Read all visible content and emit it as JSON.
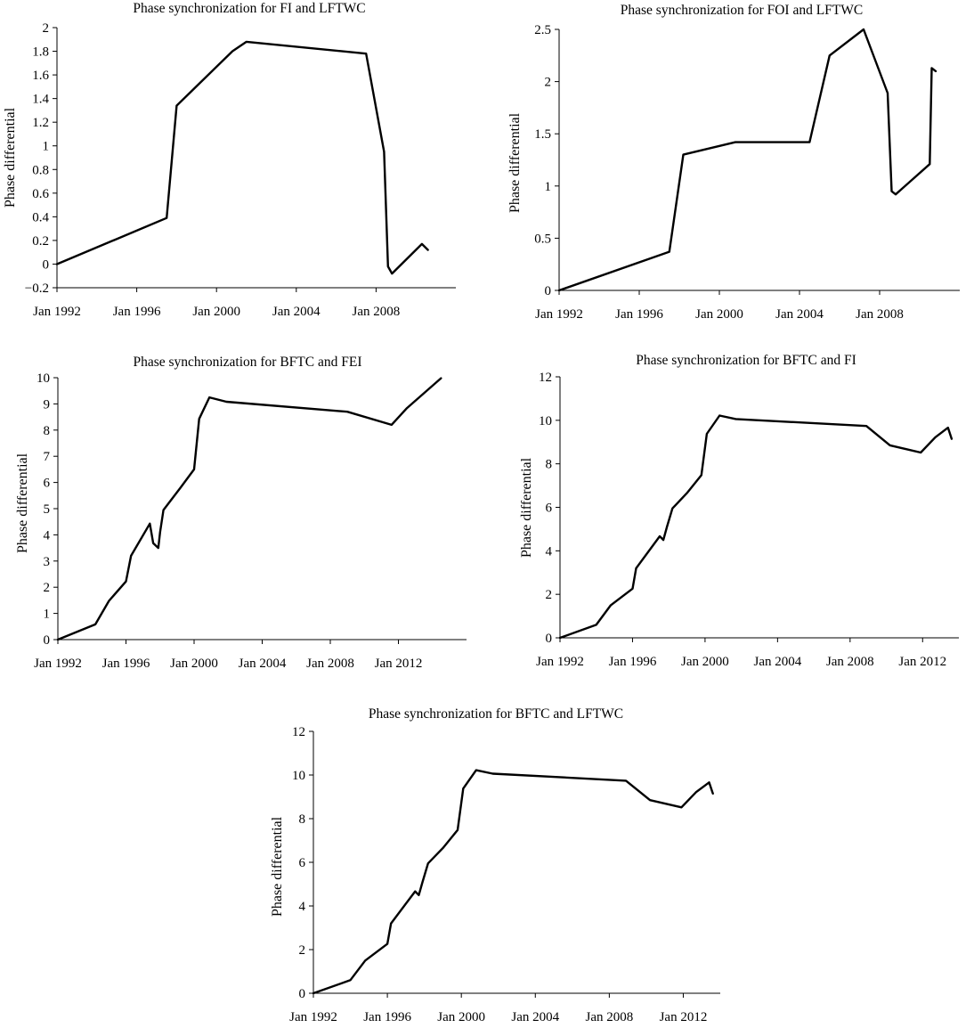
{
  "chart_data": [
    {
      "type": "line",
      "title": "Phase synchronization for FI and LFTWC",
      "ylabel": "Phase differential",
      "xlabel": "",
      "xlim": [
        1992,
        2012
      ],
      "ylim": [
        -0.2,
        2
      ],
      "yticks": [
        -0.2,
        0,
        0.2,
        0.4,
        0.6,
        0.8,
        1,
        1.2,
        1.4,
        1.6,
        1.8,
        2
      ],
      "ytick_labels": [
        "−0.2",
        "0",
        "0.2",
        "0.4",
        "0.6",
        "0.8",
        "1",
        "1.2",
        "1.4",
        "1.6",
        "1.8",
        "2"
      ],
      "xticks": [
        1992,
        1996,
        2000,
        2004,
        2008
      ],
      "xtick_labels": [
        "Jan 1992",
        "Jan 1996",
        "Jan 2000",
        "Jan 2004",
        "Jan 2008"
      ],
      "x": [
        1992.0,
        1997.5,
        1998.0,
        2000.8,
        2001.5,
        2007.5,
        2008.4,
        2008.6,
        2008.8,
        2010.3,
        2010.6
      ],
      "y": [
        0.0,
        0.39,
        1.34,
        1.8,
        1.88,
        1.78,
        0.95,
        -0.02,
        -0.08,
        0.17,
        0.12
      ]
    },
    {
      "type": "line",
      "title": "Phase synchronization for FOI and LFTWC",
      "ylabel": "Phase differential",
      "xlabel": "",
      "xlim": [
        1992,
        2012
      ],
      "ylim": [
        0,
        2.5
      ],
      "yticks": [
        0,
        0.5,
        1,
        1.5,
        2,
        2.5
      ],
      "ytick_labels": [
        "0",
        "0.5",
        "1",
        "1.5",
        "2",
        "2.5"
      ],
      "xticks": [
        1992,
        1996,
        2000,
        2004,
        2008
      ],
      "xtick_labels": [
        "Jan 1992",
        "Jan 1996",
        "Jan 2000",
        "Jan 2004",
        "Jan 2008"
      ],
      "x": [
        1992.0,
        1997.5,
        1998.2,
        2000.8,
        2004.5,
        2005.5,
        2007.2,
        2008.4,
        2008.6,
        2008.8,
        2010.5,
        2010.6,
        2010.8
      ],
      "y": [
        0.0,
        0.37,
        1.3,
        1.42,
        1.42,
        2.25,
        2.5,
        1.89,
        0.95,
        0.92,
        1.21,
        2.13,
        2.1
      ]
    },
    {
      "type": "line",
      "title": "Phase synchronization for BFTC and FEI",
      "ylabel": "Phase differential",
      "xlabel": "",
      "xlim": [
        1992,
        2016
      ],
      "ylim": [
        0,
        10
      ],
      "yticks": [
        0,
        1,
        2,
        3,
        4,
        5,
        6,
        7,
        8,
        9,
        10
      ],
      "ytick_labels": [
        "0",
        "1",
        "2",
        "3",
        "4",
        "5",
        "6",
        "7",
        "8",
        "9",
        "10"
      ],
      "xticks": [
        1992,
        1996,
        2000,
        2004,
        2008,
        2012
      ],
      "xtick_labels": [
        "Jan 1992",
        "Jan 1996",
        "Jan 2000",
        "Jan 2004",
        "Jan 2008",
        "Jan 2012"
      ],
      "x": [
        1992.0,
        1994.2,
        1995.0,
        1996.0,
        1996.3,
        1997.4,
        1997.6,
        1997.9,
        1998.0,
        1998.2,
        1999.2,
        2000.0,
        2000.3,
        2000.9,
        2001.9,
        2009.0,
        2011.6,
        2012.5,
        2014.5
      ],
      "y": [
        0.0,
        0.58,
        1.48,
        2.22,
        3.2,
        4.43,
        3.68,
        3.5,
        4.1,
        4.95,
        5.8,
        6.5,
        8.43,
        9.25,
        9.08,
        8.7,
        8.2,
        8.84,
        9.98
      ]
    },
    {
      "type": "line",
      "title": "Phase synchronization for BFTC and FI",
      "ylabel": "Phase differential",
      "xlabel": "",
      "xlim": [
        1992,
        2014
      ],
      "ylim": [
        0,
        12
      ],
      "yticks": [
        0,
        2,
        4,
        6,
        8,
        10,
        12
      ],
      "ytick_labels": [
        "0",
        "2",
        "4",
        "6",
        "8",
        "10",
        "12"
      ],
      "xticks": [
        1992,
        1996,
        2000,
        2004,
        2008,
        2012
      ],
      "xtick_labels": [
        "Jan 1992",
        "Jan 1996",
        "Jan 2000",
        "Jan 2004",
        "Jan 2008",
        "Jan 2012"
      ],
      "x": [
        1992.0,
        1994.0,
        1994.8,
        1996.0,
        1996.2,
        1997.5,
        1997.7,
        1997.9,
        1998.2,
        1999.0,
        1999.8,
        2000.1,
        2000.8,
        2001.7,
        2008.9,
        2010.2,
        2011.9,
        2012.7,
        2013.4,
        2013.6
      ],
      "y": [
        0.0,
        0.6,
        1.5,
        2.26,
        3.2,
        4.67,
        4.5,
        5.1,
        5.95,
        6.65,
        7.48,
        9.38,
        10.22,
        10.06,
        9.74,
        8.85,
        8.52,
        9.22,
        9.66,
        9.15
      ]
    },
    {
      "type": "line",
      "title": "Phase synchronization for BFTC and LFTWC",
      "ylabel": "Phase differential",
      "xlabel": "",
      "xlim": [
        1992,
        2014
      ],
      "ylim": [
        0,
        12
      ],
      "yticks": [
        0,
        2,
        4,
        6,
        8,
        10,
        12
      ],
      "ytick_labels": [
        "0",
        "2",
        "4",
        "6",
        "8",
        "10",
        "12"
      ],
      "xticks": [
        1992,
        1996,
        2000,
        2004,
        2008,
        2012
      ],
      "xtick_labels": [
        "Jan 1992",
        "Jan 1996",
        "Jan 2000",
        "Jan 2004",
        "Jan 2008",
        "Jan 2012"
      ],
      "x": [
        1992.0,
        1994.0,
        1994.8,
        1996.0,
        1996.2,
        1997.5,
        1997.7,
        1997.9,
        1998.2,
        1999.0,
        1999.8,
        2000.1,
        2000.8,
        2001.7,
        2008.9,
        2010.2,
        2011.9,
        2012.7,
        2013.4,
        2013.6
      ],
      "y": [
        0.0,
        0.6,
        1.5,
        2.26,
        3.2,
        4.67,
        4.5,
        5.1,
        5.95,
        6.65,
        7.48,
        9.38,
        10.22,
        10.06,
        9.74,
        8.85,
        8.52,
        9.22,
        9.66,
        9.15
      ]
    }
  ]
}
